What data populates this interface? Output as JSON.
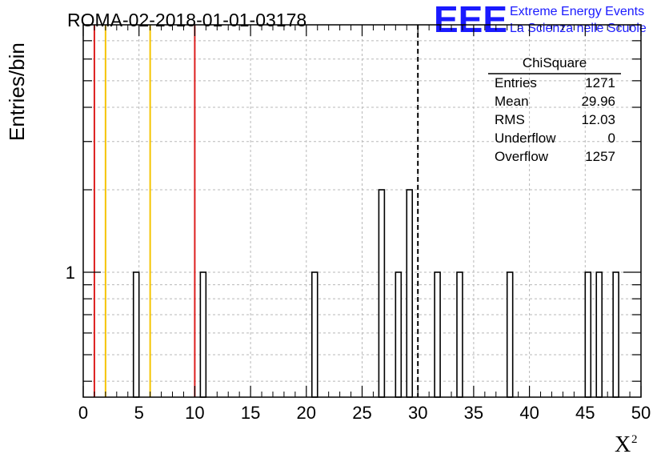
{
  "chart_data": {
    "type": "bar",
    "title": "ROMA-02-2018-01-01-03178",
    "xlabel": "X",
    "xlabel_sup": "2",
    "ylabel": "Entries/bin",
    "xlim": [
      0,
      50
    ],
    "ylim_log": [
      0.35,
      8
    ],
    "log_y": true,
    "grid": true,
    "x_ticks": [
      0,
      5,
      10,
      15,
      20,
      25,
      30,
      35,
      40,
      45,
      50
    ],
    "y_tick_labels": [
      {
        "value": 1,
        "label": "1"
      }
    ],
    "bin_width": 0.5,
    "bins": [
      {
        "x": 4.5,
        "y": 1
      },
      {
        "x": 10.5,
        "y": 1
      },
      {
        "x": 20.5,
        "y": 1
      },
      {
        "x": 26.5,
        "y": 2
      },
      {
        "x": 28.0,
        "y": 1
      },
      {
        "x": 29.0,
        "y": 2
      },
      {
        "x": 31.5,
        "y": 1
      },
      {
        "x": 33.5,
        "y": 1
      },
      {
        "x": 38.0,
        "y": 1
      },
      {
        "x": 45.0,
        "y": 1
      },
      {
        "x": 46.0,
        "y": 1
      },
      {
        "x": 47.5,
        "y": 1
      }
    ],
    "vertical_lines": [
      {
        "x": 1,
        "color": "#dd1f1f",
        "style": "solid"
      },
      {
        "x": 2,
        "color": "#f5c400",
        "style": "solid"
      },
      {
        "x": 6,
        "color": "#f5c400",
        "style": "solid"
      },
      {
        "x": 10,
        "color": "#dd1f1f",
        "style": "solid"
      },
      {
        "x": 30,
        "color": "#000000",
        "style": "dashed"
      }
    ],
    "legend_position": "top-right",
    "stats": {
      "title": "ChiSquare",
      "rows": [
        {
          "label": "Entries",
          "value": "1271"
        },
        {
          "label": "Mean",
          "value": "29.96"
        },
        {
          "label": "RMS",
          "value": "12.03"
        },
        {
          "label": "Underflow",
          "value": "0"
        },
        {
          "label": "Overflow",
          "value": "1257"
        }
      ]
    }
  },
  "logo": {
    "text": "EEE",
    "line1": "Extreme Energy Events",
    "line2": "La Scienza nelle Scuole",
    "color": "#1a1aff"
  }
}
